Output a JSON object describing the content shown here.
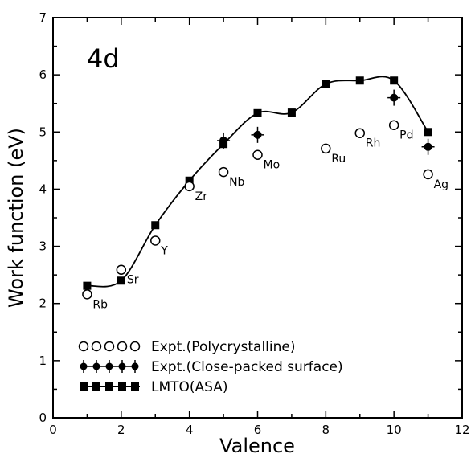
{
  "chart_data": {
    "type": "scatter",
    "panel_label": "4d",
    "xlabel": "Valence",
    "ylabel": "Work function (eV)",
    "xlim": [
      0,
      12
    ],
    "ylim": [
      0,
      7
    ],
    "xticks": [
      0,
      2,
      4,
      6,
      8,
      10,
      12
    ],
    "yticks": [
      0,
      1,
      2,
      3,
      4,
      5,
      6,
      7
    ],
    "series": [
      {
        "name": "Expt.(Polycrystalline)",
        "marker": "open-circle",
        "points": [
          {
            "x": 1,
            "y": 2.16,
            "label": "Rb"
          },
          {
            "x": 2,
            "y": 2.59,
            "label": "Sr"
          },
          {
            "x": 3,
            "y": 3.1,
            "label": "Y"
          },
          {
            "x": 4,
            "y": 4.05,
            "label": "Zr"
          },
          {
            "x": 5,
            "y": 4.3,
            "label": "Nb"
          },
          {
            "x": 6,
            "y": 4.6,
            "label": "Mo"
          },
          {
            "x": 8,
            "y": 4.71,
            "label": "Ru"
          },
          {
            "x": 9,
            "y": 4.98,
            "label": "Rh"
          },
          {
            "x": 10,
            "y": 5.12,
            "label": "Pd"
          },
          {
            "x": 11,
            "y": 4.26,
            "label": "Ag"
          }
        ]
      },
      {
        "name": "Expt.(Close-packed surface)",
        "marker": "filled-circle-errorbar",
        "points": [
          {
            "x": 5,
            "y": 4.85
          },
          {
            "x": 6,
            "y": 4.95
          },
          {
            "x": 10,
            "y": 5.6
          },
          {
            "x": 11,
            "y": 4.74
          }
        ]
      },
      {
        "name": "LMTO(ASA)",
        "marker": "filled-square",
        "line": "smooth",
        "points": [
          {
            "x": 1,
            "y": 2.31
          },
          {
            "x": 2,
            "y": 2.4
          },
          {
            "x": 3,
            "y": 3.37
          },
          {
            "x": 4,
            "y": 4.15
          },
          {
            "x": 5,
            "y": 4.79
          },
          {
            "x": 6,
            "y": 5.33
          },
          {
            "x": 7,
            "y": 5.34
          },
          {
            "x": 8,
            "y": 5.84
          },
          {
            "x": 9,
            "y": 5.9
          },
          {
            "x": 10,
            "y": 5.9
          },
          {
            "x": 11,
            "y": 5.0
          }
        ]
      }
    ],
    "legend_position": "bottom-left"
  }
}
